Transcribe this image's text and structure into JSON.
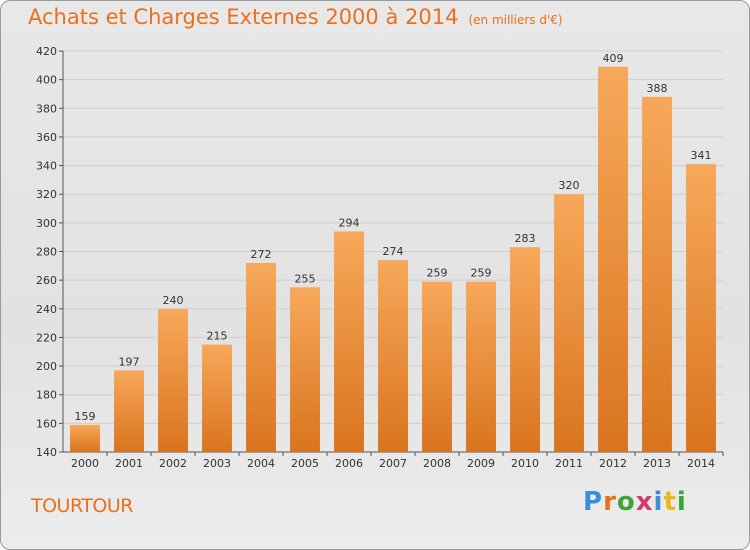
{
  "title": "Achats et Charges Externes 2000 à 2014",
  "subtitle": "(en milliers d'€)",
  "commune": "TOURTOUR",
  "logo": {
    "text": "Proxiti",
    "letters": [
      {
        "char": "P",
        "color": "#3a8fd6"
      },
      {
        "char": "r",
        "color": "#e8701e"
      },
      {
        "char": "o",
        "color": "#3aa63a"
      },
      {
        "char": "x",
        "color": "#d63a6a"
      },
      {
        "char": "i",
        "color": "#3a8fd6"
      },
      {
        "char": "t",
        "color": "#e8b81e"
      },
      {
        "char": "i",
        "color": "#3aa63a"
      }
    ]
  },
  "colors": {
    "bar_top": "#f7a85a",
    "bar_bottom": "#d9741e",
    "accent": "#e8701e",
    "grid": "#cfcfcf"
  },
  "chart_data": {
    "type": "bar",
    "title": "Achats et Charges Externes 2000 à 2014",
    "subtitle": "(en milliers d'€)",
    "categories": [
      "2000",
      "2001",
      "2002",
      "2003",
      "2004",
      "2005",
      "2006",
      "2007",
      "2008",
      "2009",
      "2010",
      "2011",
      "2012",
      "2013",
      "2014"
    ],
    "values": [
      159,
      197,
      240,
      215,
      272,
      255,
      294,
      274,
      259,
      259,
      283,
      320,
      409,
      388,
      341
    ],
    "ylim": [
      140,
      420
    ],
    "yticks": [
      140,
      160,
      180,
      200,
      220,
      240,
      260,
      280,
      300,
      320,
      340,
      360,
      380,
      400,
      420
    ],
    "grid": true,
    "xlabel": "",
    "ylabel": ""
  }
}
